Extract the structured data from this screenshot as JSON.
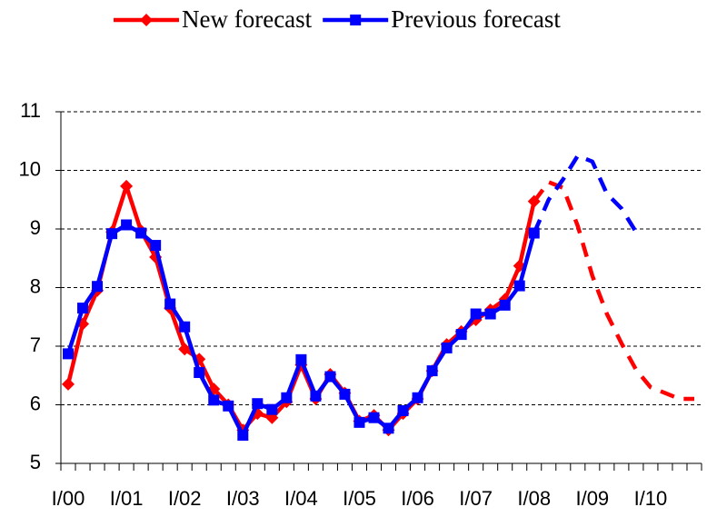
{
  "chart_data": {
    "type": "line",
    "categories": [
      "I/00",
      null,
      null,
      null,
      "I/01",
      null,
      null,
      null,
      "I/02",
      null,
      null,
      null,
      "I/03",
      null,
      null,
      null,
      "I/04",
      null,
      null,
      null,
      "I/05",
      null,
      null,
      null,
      "I/06",
      null,
      null,
      null,
      "I/07",
      null,
      null,
      null,
      "I/08",
      null,
      null,
      null,
      "I/09",
      null,
      null,
      null,
      "I/10",
      null,
      null,
      null
    ],
    "series": [
      {
        "name": "New forecast",
        "color": "#ff0000",
        "marker": "diamond",
        "values": [
          6.35,
          7.38,
          7.95,
          8.95,
          9.73,
          8.97,
          8.52,
          7.65,
          6.95,
          6.78,
          6.27,
          6.0,
          5.57,
          5.85,
          5.78,
          6.05,
          6.68,
          6.1,
          6.52,
          6.2,
          5.72,
          5.82,
          5.57,
          5.85,
          6.1,
          6.58,
          7.03,
          7.25,
          7.45,
          7.62,
          7.8,
          8.37,
          9.47,
          null,
          null,
          null,
          null,
          null,
          null,
          null,
          null,
          null,
          null,
          null
        ],
        "dashed_values": [
          null,
          null,
          null,
          null,
          null,
          null,
          null,
          null,
          null,
          null,
          null,
          null,
          null,
          null,
          null,
          null,
          null,
          null,
          null,
          null,
          null,
          null,
          null,
          null,
          null,
          null,
          null,
          null,
          null,
          null,
          null,
          null,
          9.47,
          9.8,
          9.7,
          9.05,
          8.2,
          7.55,
          7.05,
          6.6,
          6.3,
          6.2,
          6.1,
          6.1
        ]
      },
      {
        "name": "Previous forecast",
        "color": "#0000ff",
        "marker": "square",
        "values": [
          6.87,
          7.65,
          8.02,
          8.92,
          9.07,
          8.93,
          8.72,
          7.72,
          7.33,
          6.55,
          6.08,
          5.98,
          5.48,
          6.02,
          5.92,
          6.12,
          6.77,
          6.15,
          6.48,
          6.18,
          5.7,
          5.78,
          5.6,
          5.9,
          6.12,
          6.58,
          6.97,
          7.2,
          7.55,
          7.55,
          7.7,
          8.03,
          8.93,
          null,
          null,
          null,
          null,
          null,
          null,
          null,
          null,
          null,
          null,
          null
        ],
        "dashed_values": [
          null,
          null,
          null,
          null,
          null,
          null,
          null,
          null,
          null,
          null,
          null,
          null,
          null,
          null,
          null,
          null,
          null,
          null,
          null,
          null,
          null,
          null,
          null,
          null,
          null,
          null,
          null,
          null,
          null,
          null,
          null,
          null,
          8.93,
          9.5,
          9.85,
          10.25,
          10.15,
          9.6,
          9.35,
          8.95,
          null,
          null,
          null,
          null
        ]
      }
    ],
    "ylim": [
      5,
      11
    ],
    "yticks": [
      5,
      6,
      7,
      8,
      9,
      10,
      11
    ],
    "grid": true,
    "legend": "top"
  }
}
